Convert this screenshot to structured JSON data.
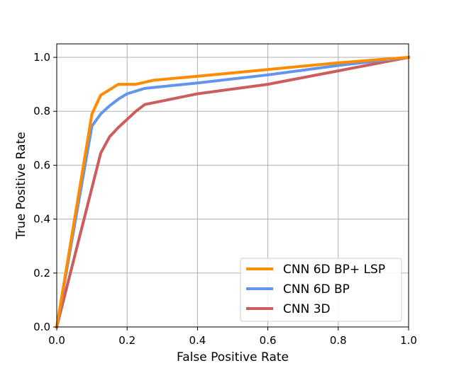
{
  "chart_data": {
    "type": "line",
    "title": "",
    "xlabel": "False Positive Rate",
    "ylabel": "True Positive Rate",
    "xlim": [
      0.0,
      1.0
    ],
    "ylim": [
      0.0,
      1.05
    ],
    "xticks": [
      0.0,
      0.2,
      0.4,
      0.6,
      0.8,
      1.0
    ],
    "yticks": [
      0.0,
      0.2,
      0.4,
      0.6,
      0.8,
      1.0
    ],
    "xtick_labels": [
      "0.0",
      "0.2",
      "0.4",
      "0.6",
      "0.8",
      "1.0"
    ],
    "ytick_labels": [
      "0.0",
      "0.2",
      "0.4",
      "0.6",
      "0.8",
      "1.0"
    ],
    "grid": true,
    "legend_position": "bottom-right",
    "series": [
      {
        "name": "CNN 6D BP+ LSP",
        "color": "#ff8c00",
        "x": [
          0.0,
          0.1,
          0.125,
          0.15,
          0.175,
          0.2,
          0.225,
          0.275,
          0.4,
          0.6,
          0.8,
          1.0
        ],
        "y": [
          0.0,
          0.79,
          0.86,
          0.88,
          0.9,
          0.9,
          0.9,
          0.915,
          0.93,
          0.955,
          0.98,
          1.0
        ]
      },
      {
        "name": "CNN 6D BP",
        "color": "#6495ed",
        "x": [
          0.0,
          0.1,
          0.125,
          0.15,
          0.175,
          0.2,
          0.225,
          0.25,
          0.4,
          0.6,
          0.8,
          1.0
        ],
        "y": [
          0.0,
          0.745,
          0.79,
          0.82,
          0.845,
          0.865,
          0.875,
          0.885,
          0.905,
          0.935,
          0.97,
          1.0
        ]
      },
      {
        "name": "CNN 3D",
        "color": "#cd5c5c",
        "x": [
          0.0,
          0.125,
          0.15,
          0.175,
          0.2,
          0.225,
          0.25,
          0.4,
          0.6,
          0.8,
          1.0
        ],
        "y": [
          0.0,
          0.645,
          0.705,
          0.74,
          0.77,
          0.8,
          0.825,
          0.865,
          0.9,
          0.95,
          1.0
        ]
      }
    ]
  }
}
